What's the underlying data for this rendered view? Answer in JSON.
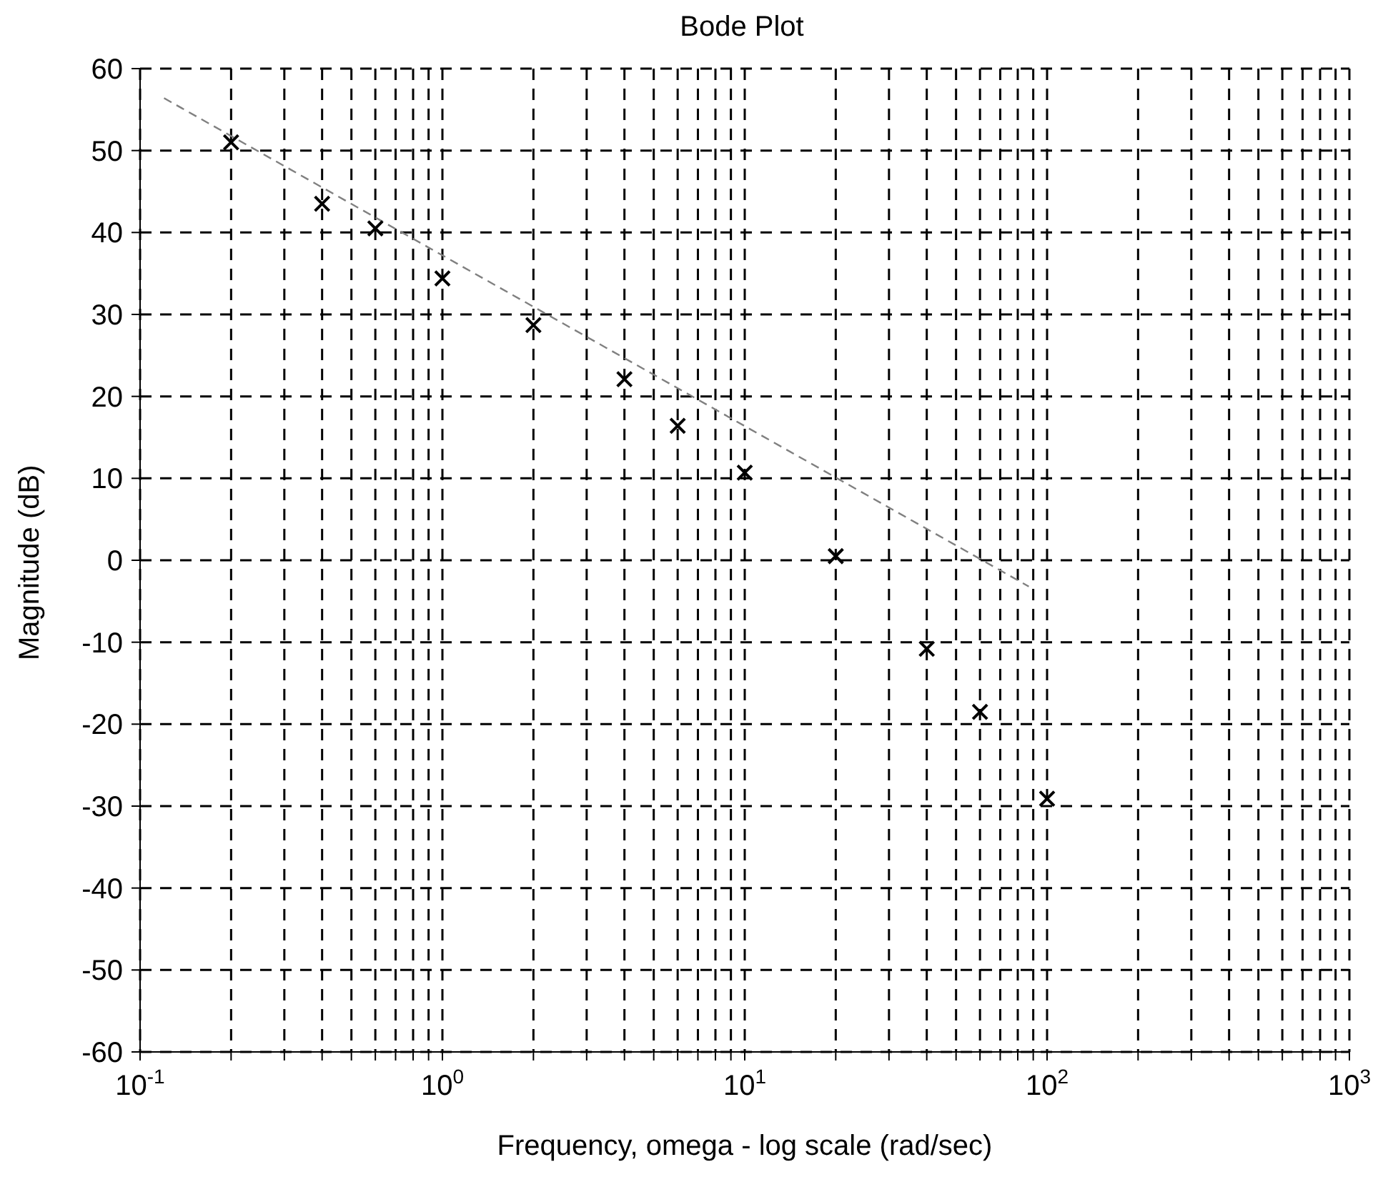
{
  "chart_data": {
    "type": "scatter",
    "title": "Bode Plot",
    "xlabel": "Frequency, omega - log scale (rad/sec)",
    "ylabel": "Magnitude (dB)",
    "log": "x",
    "grid": true,
    "legend": false,
    "xlim": [
      0.1,
      1000
    ],
    "ylim": [
      -60,
      60
    ],
    "xticks": [
      {
        "value": 0.1,
        "label": "10$^{-1}$"
      },
      {
        "value": 0.2,
        "label": null
      },
      {
        "value": 0.3,
        "label": null
      },
      {
        "value": 0.4,
        "label": null
      },
      {
        "value": 0.5,
        "label": null
      },
      {
        "value": 0.6,
        "label": null
      },
      {
        "value": 0.7,
        "label": null
      },
      {
        "value": 0.8,
        "label": null
      },
      {
        "value": 0.9,
        "label": null
      },
      {
        "value": 1,
        "label": "10$^{0}$"
      },
      {
        "value": 2,
        "label": null
      },
      {
        "value": 3,
        "label": null
      },
      {
        "value": 4,
        "label": null
      },
      {
        "value": 5,
        "label": null
      },
      {
        "value": 6,
        "label": null
      },
      {
        "value": 7,
        "label": null
      },
      {
        "value": 8,
        "label": null
      },
      {
        "value": 9,
        "label": null
      },
      {
        "value": 10,
        "label": "10$^{1}$"
      },
      {
        "value": 20,
        "label": null
      },
      {
        "value": 30,
        "label": null
      },
      {
        "value": 40,
        "label": null
      },
      {
        "value": 50,
        "label": null
      },
      {
        "value": 60,
        "label": null
      },
      {
        "value": 70,
        "label": null
      },
      {
        "value": 80,
        "label": null
      },
      {
        "value": 90,
        "label": null
      },
      {
        "value": 100,
        "label": "10$^{2}$"
      },
      {
        "value": 200,
        "label": null
      },
      {
        "value": 300,
        "label": null
      },
      {
        "value": 400,
        "label": null
      },
      {
        "value": 500,
        "label": null
      },
      {
        "value": 600,
        "label": null
      },
      {
        "value": 700,
        "label": null
      },
      {
        "value": 800,
        "label": null
      },
      {
        "value": 900,
        "label": null
      },
      {
        "value": 1000,
        "label": "10$^{3}$"
      }
    ],
    "yticks": [
      -60,
      -50,
      -40,
      -30,
      -20,
      -10,
      0,
      10,
      20,
      30,
      40,
      50,
      60
    ],
    "series": [
      {
        "color": "#000000",
        "marker": "cross",
        "x": [
          0.2,
          0.4,
          0.6,
          1,
          2,
          4,
          6,
          10,
          20,
          40,
          60,
          100
        ],
        "values": [
          51,
          43.5,
          40.5,
          34.4,
          28.7,
          22.1,
          16.4,
          10.7,
          0.5,
          -10.8,
          -18.5,
          -29.1
        ]
      },
      {
        "type": "line",
        "color": "#808080",
        "marker": "none",
        "line_style": "dashed",
        "x": [
          0.12,
          87
        ],
        "values": [
          56.4,
          -3.2
        ]
      }
    ]
  }
}
